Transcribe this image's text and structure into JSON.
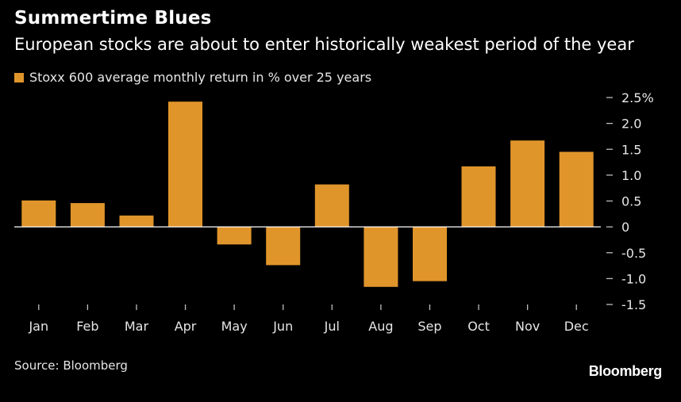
{
  "header": {
    "title": "Summertime Blues",
    "subtitle": "European stocks are about to enter historically weakest period of the year"
  },
  "footer": {
    "source": "Source: Bloomberg",
    "brand": "Bloomberg"
  },
  "colors": {
    "background": "#000000",
    "bar": "#e0952b",
    "zero_line": "#ffffff",
    "text": "#e6e6e6"
  },
  "chart_data": {
    "type": "bar",
    "title": "Summertime Blues",
    "subtitle": "European stocks are about to enter historically weakest period of the year",
    "xlabel": "",
    "ylabel": "",
    "categories": [
      "Jan",
      "Feb",
      "Mar",
      "Apr",
      "May",
      "Jun",
      "Jul",
      "Aug",
      "Sep",
      "Oct",
      "Nov",
      "Dec"
    ],
    "series": [
      {
        "name": "Stoxx 600 average monthly return in % over 25 years",
        "values": [
          0.51,
          0.46,
          0.22,
          2.42,
          -0.34,
          -0.74,
          0.82,
          -1.16,
          -1.05,
          1.17,
          1.67,
          1.45
        ]
      }
    ],
    "ylim": [
      -1.5,
      2.5
    ],
    "yticks": [
      2.5,
      2.0,
      1.5,
      1.0,
      0.5,
      0,
      -0.5,
      -1.0,
      -1.5
    ],
    "ytick_labels": [
      "2.5%",
      "2.0",
      "1.5",
      "1.0",
      "0.5",
      "0",
      "-0.5",
      "-1.0",
      "-1.5"
    ],
    "y_axis_side": "right",
    "grid": false,
    "legend_position": "top-left"
  }
}
